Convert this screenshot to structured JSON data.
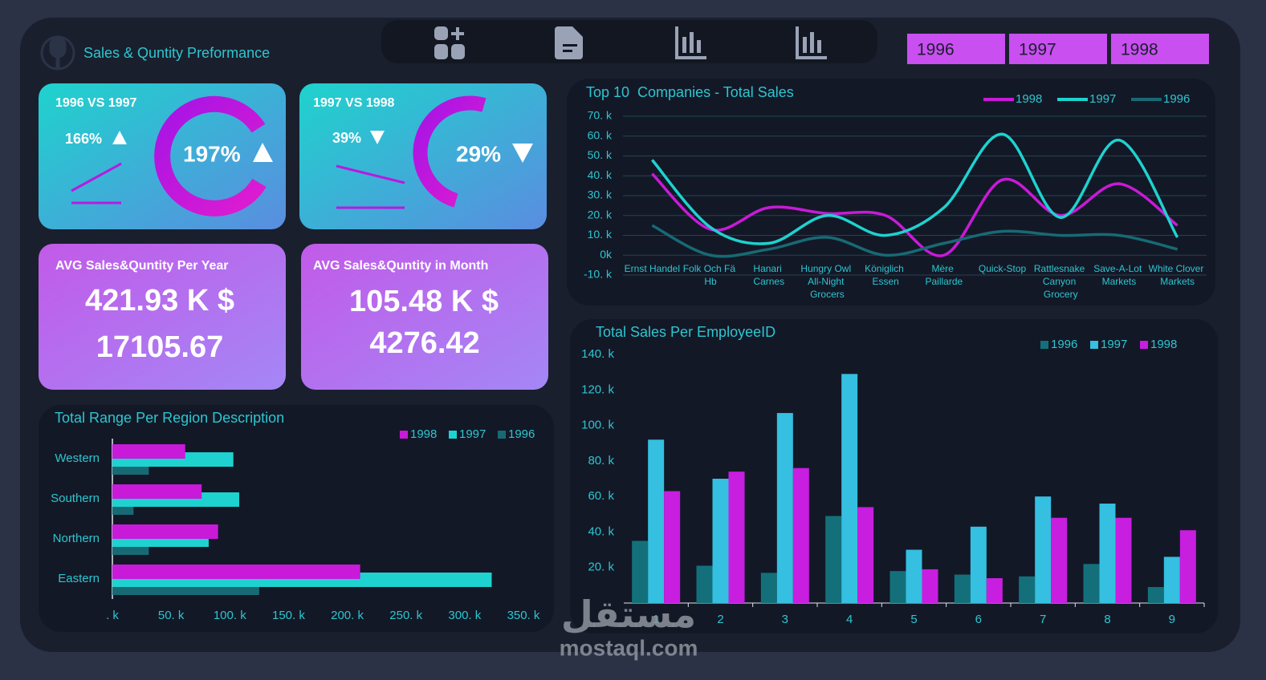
{
  "header": {
    "title": "Sales & Quntity Preformance",
    "years": [
      "1996",
      "1997",
      "1998"
    ]
  },
  "kpis": [
    {
      "title": "1996 VS 1997",
      "change": "166%",
      "total": "197%"
    },
    {
      "title": "1997 VS 1998",
      "change": "39%",
      "total": "29%"
    },
    {
      "title": "AVG Sales&Quntity Per Year",
      "sales": "421.93 K $",
      "quantity": "17105.67"
    },
    {
      "title": "AVG Sales&Quntity in Month",
      "sales": "105.48 K $",
      "quantity": "4276.42"
    }
  ],
  "watermark": {
    "arabic": "مستقل",
    "latin": "mostaql.com"
  },
  "chart_data": [
    {
      "type": "line",
      "title": "Top 10  Companies - Total Sales",
      "categories": [
        "Ernst Handel",
        "Folk Och Fä Hb",
        "Hanari Carnes",
        "Hungry Owl All-Night Grocers",
        "Königlich Essen",
        "Mère Paillarde",
        "Quick-Stop",
        "Rattlesnake Canyon Grocery",
        "Save-A-Lot Markets",
        "White Clover Markets"
      ],
      "series": [
        {
          "name": "1998",
          "color": "#c81ad8",
          "values": [
            41,
            13,
            24,
            21,
            20,
            0,
            38,
            20,
            36,
            15
          ]
        },
        {
          "name": "1997",
          "color": "#1ed2cf",
          "values": [
            48,
            14,
            6,
            20,
            10,
            24,
            61,
            19,
            58,
            9
          ]
        },
        {
          "name": "1996",
          "color": "#176a74",
          "values": [
            15,
            0,
            3,
            9,
            0,
            6,
            12,
            10,
            10,
            3
          ]
        }
      ],
      "ylim": [
        -10,
        70
      ],
      "yticks": [
        {
          "value": -10,
          "label": "-10. k"
        },
        {
          "value": 0,
          "label": "0k"
        },
        {
          "value": 10,
          "label": "10. k"
        },
        {
          "value": 20,
          "label": "20. k"
        },
        {
          "value": 30,
          "label": "30. k"
        },
        {
          "value": 40,
          "label": "40. k"
        },
        {
          "value": 50,
          "label": "50. k"
        },
        {
          "value": 60,
          "label": "60. k"
        },
        {
          "value": 70,
          "label": "70. k"
        }
      ],
      "grid": true
    },
    {
      "type": "bar",
      "title": "Total Sales Per EmployeeID",
      "categories": [
        "1",
        "2",
        "3",
        "4",
        "5",
        "6",
        "7",
        "8",
        "9"
      ],
      "series": [
        {
          "name": "1996",
          "color": "#13707a",
          "values": [
            35,
            21,
            17,
            49,
            18,
            16,
            15,
            22,
            9
          ]
        },
        {
          "name": "1997",
          "color": "#35bfe0",
          "values": [
            92,
            70,
            107,
            129,
            30,
            43,
            60,
            56,
            26
          ]
        },
        {
          "name": "1998",
          "color": "#c81ee0",
          "values": [
            63,
            74,
            76,
            54,
            19,
            14,
            48,
            48,
            41
          ]
        }
      ],
      "ylim": [
        0,
        140
      ],
      "yticks": [
        {
          "value": 20,
          "label": "20. k"
        },
        {
          "value": 40,
          "label": "40. k"
        },
        {
          "value": 60,
          "label": "60. k"
        },
        {
          "value": 80,
          "label": "80. k"
        },
        {
          "value": 100,
          "label": "100. k"
        },
        {
          "value": 120,
          "label": "120. k"
        },
        {
          "value": 140,
          "label": "140. k"
        }
      ],
      "grid": false
    },
    {
      "type": "barh",
      "title": "Total Range Per Region Description",
      "categories": [
        "Western",
        "Southern",
        "Northern",
        "Eastern"
      ],
      "series": [
        {
          "name": "1998",
          "color": "#c81ad8",
          "values": [
            62,
            76,
            90,
            211
          ]
        },
        {
          "name": "1997",
          "color": "#1ed2cf",
          "values": [
            103,
            108,
            82,
            323
          ]
        },
        {
          "name": "1996",
          "color": "#176a74",
          "values": [
            31,
            18,
            31,
            125
          ]
        }
      ],
      "xlim": [
        0,
        350
      ],
      "xticks": [
        {
          "value": 0,
          "label": ". k"
        },
        {
          "value": 50,
          "label": "50. k"
        },
        {
          "value": 100,
          "label": "100. k"
        },
        {
          "value": 150,
          "label": "150. k"
        },
        {
          "value": 200,
          "label": "200. k"
        },
        {
          "value": 250,
          "label": "250. k"
        },
        {
          "value": 300,
          "label": "300. k"
        },
        {
          "value": 350,
          "label": "350. k"
        }
      ],
      "grid": false
    }
  ]
}
